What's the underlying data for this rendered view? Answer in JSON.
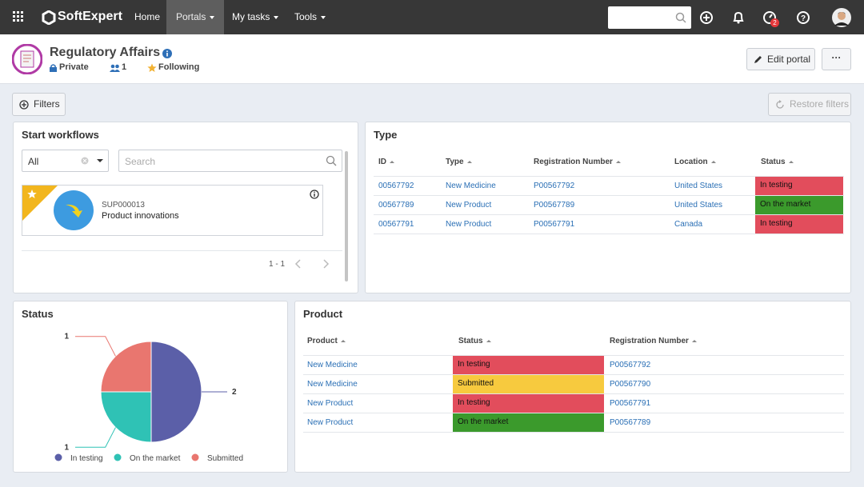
{
  "nav": {
    "brand": "SoftExpert",
    "items": [
      "Home",
      "Portals",
      "My tasks",
      "Tools"
    ],
    "badge": "2"
  },
  "header": {
    "title": "Regulatory Affairs",
    "privacy": "Private",
    "members": "1",
    "following": "Following",
    "edit": "Edit portal"
  },
  "toolbar": {
    "filters": "Filters",
    "restore": "Restore filters"
  },
  "workflows": {
    "title": "Start workflows",
    "select": "All",
    "search": "Search",
    "card": {
      "code": "SUP000013",
      "name": "Product innovations"
    },
    "pagination": "1 - 1"
  },
  "type_table": {
    "title": "Type",
    "columns": [
      "ID",
      "Type",
      "Registration Number",
      "Location",
      "Status"
    ],
    "rows": [
      [
        "00567792",
        "New Medicine",
        "P00567792",
        "United States",
        "In testing"
      ],
      [
        "00567789",
        "New Product",
        "P00567789",
        "United States",
        "On the market"
      ],
      [
        "00567791",
        "New Product",
        "P00567791",
        "Canada",
        "In testing"
      ]
    ],
    "status_colors": [
      "#e24d5c",
      "#3b9a2c",
      "#e24d5c"
    ]
  },
  "status_panel": {
    "title": "Status",
    "chart": {
      "type": "pie",
      "categories": [
        "In testing",
        "On the market",
        "Submitted"
      ],
      "values": [
        2,
        1,
        1
      ],
      "colors": [
        "#5b5fa8",
        "#2fc2b5",
        "#e9766f"
      ]
    }
  },
  "product_table": {
    "title": "Product",
    "columns": [
      "Product",
      "Status",
      "Registration Number"
    ],
    "rows": [
      [
        "New Medicine",
        "In testing",
        "P00567792"
      ],
      [
        "New Medicine",
        "Submitted",
        "P00567790"
      ],
      [
        "New Product",
        "In testing",
        "P00567791"
      ],
      [
        "New Product",
        "On the market",
        "P00567789"
      ]
    ],
    "status_colors": [
      "#e24d5c",
      "#f7ca3e",
      "#e24d5c",
      "#3b9a2c"
    ]
  }
}
